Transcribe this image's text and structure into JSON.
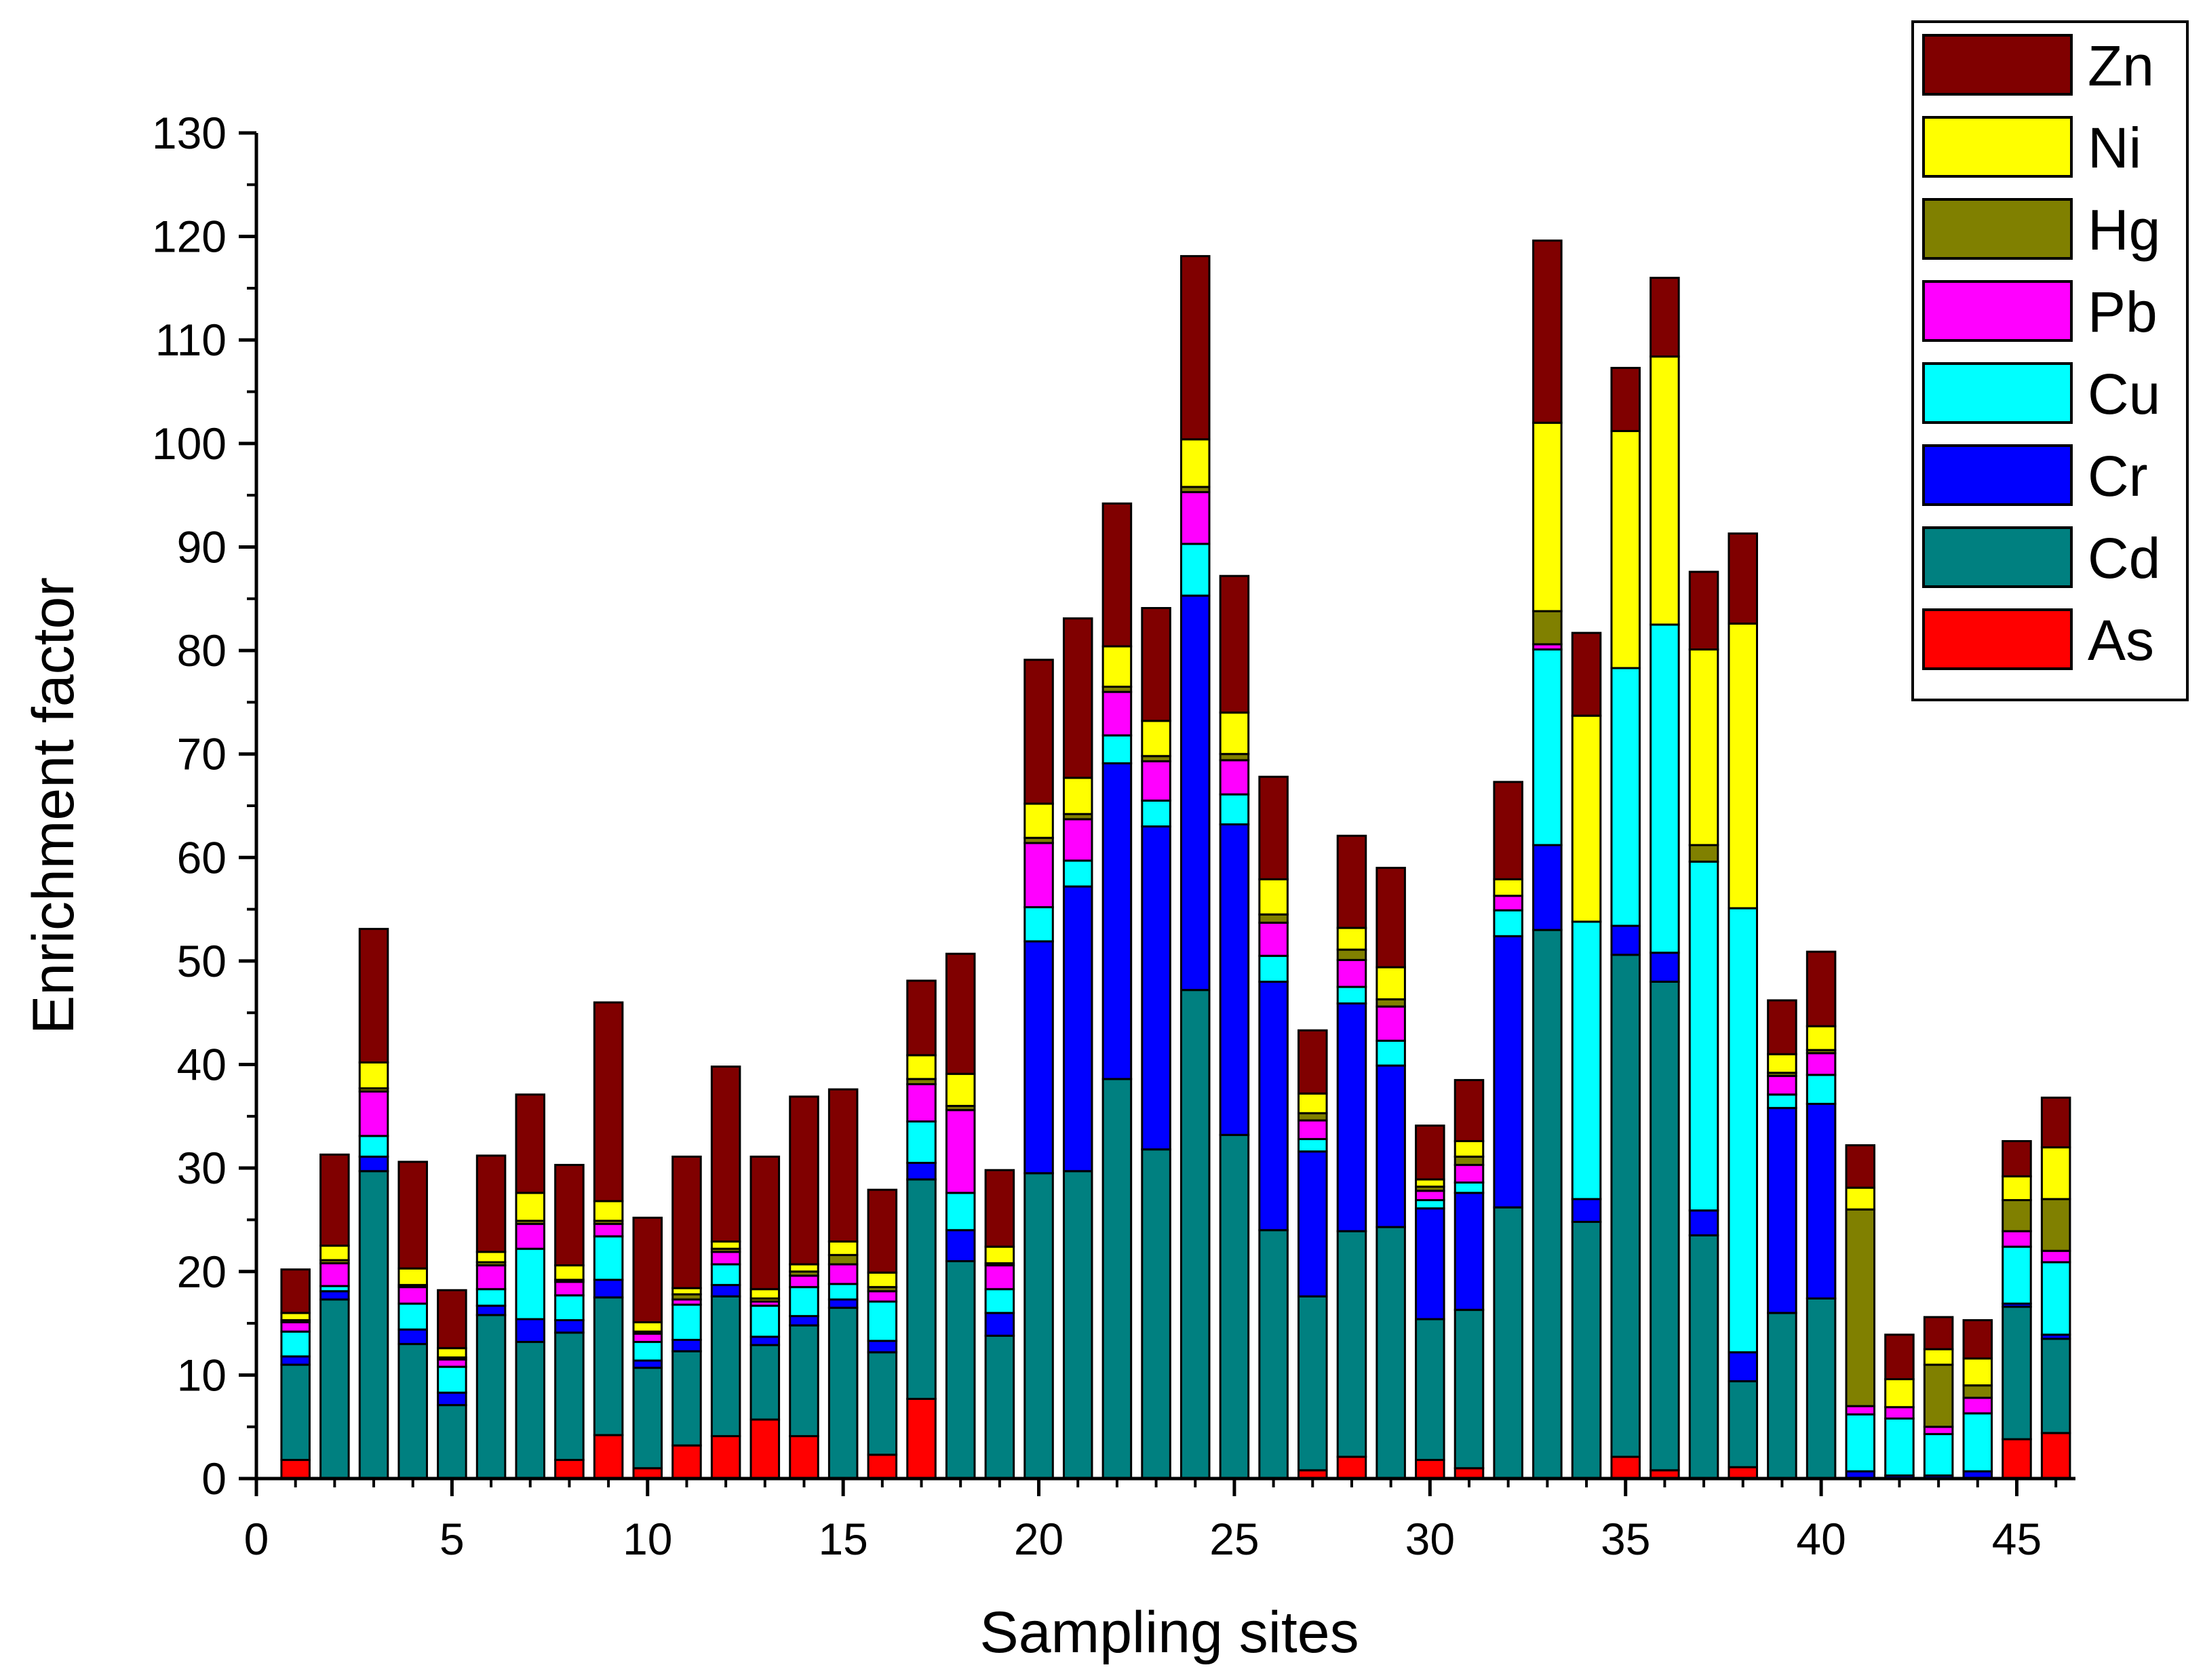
{
  "chart_data": {
    "type": "bar",
    "stacked": true,
    "title": "",
    "xlabel": "Sampling sites",
    "ylabel": "Enrichment factor",
    "xlim": [
      0,
      46.5
    ],
    "ylim": [
      0,
      130
    ],
    "xticks": [
      "0",
      "5",
      "10",
      "15",
      "20",
      "25",
      "30",
      "35",
      "40",
      "45"
    ],
    "yticks": [
      "0",
      "10",
      "20",
      "30",
      "40",
      "50",
      "60",
      "70",
      "80",
      "90",
      "100",
      "110",
      "120",
      "130"
    ],
    "legend_position": "top-right",
    "legend_order": [
      "Zn",
      "Ni",
      "Hg",
      "Pb",
      "Cu",
      "Cr",
      "Cd",
      "As"
    ],
    "categories": [
      1,
      2,
      3,
      4,
      5,
      6,
      7,
      8,
      9,
      10,
      11,
      12,
      13,
      14,
      15,
      16,
      17,
      18,
      19,
      20,
      21,
      22,
      23,
      24,
      25,
      26,
      27,
      28,
      29,
      30,
      31,
      32,
      33,
      34,
      35,
      36,
      37,
      38,
      39,
      40,
      41,
      42,
      43,
      44,
      45,
      46
    ],
    "series": [
      {
        "name": "As",
        "color": "#ff0000",
        "values": [
          1.8,
          0,
          0,
          0,
          0,
          0,
          0,
          1.8,
          4.2,
          1,
          3.2,
          4.1,
          5.7,
          4.1,
          0,
          2.3,
          7.7,
          0,
          0,
          0,
          0,
          0,
          0,
          0,
          0,
          0,
          0.8,
          2.1,
          0,
          1.8,
          1,
          0,
          0,
          0,
          2.1,
          0.8,
          0,
          1.1,
          0,
          0,
          0,
          0,
          0,
          0,
          3.8,
          4.4
        ]
      },
      {
        "name": "Cd",
        "color": "#008080",
        "values": [
          9.2,
          17.3,
          29.7,
          13,
          7.1,
          15.8,
          13.2,
          12.3,
          13.3,
          9.7,
          9.1,
          13.5,
          7.2,
          10.7,
          16.5,
          9.9,
          21.2,
          21,
          13.8,
          29.5,
          29.7,
          38.6,
          31.8,
          47.2,
          33.2,
          24,
          16.8,
          21.8,
          24.3,
          13.6,
          15.3,
          26.2,
          53,
          24.8,
          48.5,
          47.2,
          23.5,
          8.3,
          16,
          17.4,
          0,
          0,
          0,
          0,
          12.8,
          9.1
        ]
      },
      {
        "name": "Cr",
        "color": "#0000ff",
        "values": [
          0.8,
          0.8,
          1.4,
          1.4,
          1.2,
          0.9,
          2.2,
          1.2,
          1.7,
          0.7,
          1.1,
          1.1,
          0.8,
          0.9,
          0.8,
          1.1,
          1.6,
          3,
          2.2,
          22.4,
          27.5,
          30.5,
          31.2,
          38.1,
          30,
          24,
          14,
          22,
          15.6,
          10.7,
          11.3,
          26.2,
          8.2,
          2.2,
          2.8,
          2.8,
          2.4,
          2.8,
          19.8,
          18.8,
          0.7,
          0.3,
          0.3,
          0.7,
          0.3,
          0.4
        ]
      },
      {
        "name": "Cu",
        "color": "#00ffff",
        "values": [
          2.4,
          0.5,
          2,
          2.5,
          2.5,
          1.6,
          6.8,
          2.4,
          4.2,
          1.8,
          3.4,
          2,
          3,
          2.8,
          1.5,
          3.8,
          4,
          3.6,
          2.3,
          3.3,
          2.5,
          2.7,
          2.5,
          5,
          2.9,
          2.5,
          1.2,
          1.6,
          2.4,
          0.8,
          1,
          2.5,
          18.9,
          26.8,
          24.9,
          31.7,
          33.7,
          42.9,
          1.3,
          2.8,
          5.5,
          5.5,
          4,
          5.6,
          5.5,
          7
        ]
      },
      {
        "name": "Pb",
        "color": "#ff00ff",
        "values": [
          0.9,
          2.2,
          4.3,
          1.6,
          0.7,
          2.3,
          2.4,
          1.3,
          1.2,
          0.8,
          0.5,
          1.2,
          0.4,
          1.1,
          1.9,
          1,
          3.6,
          8,
          2.3,
          6.2,
          4,
          4.2,
          3.8,
          5,
          3.3,
          3.2,
          1.8,
          2.6,
          3.3,
          0.9,
          1.7,
          1.4,
          0.5,
          0,
          0,
          0,
          0,
          0,
          1.8,
          2.1,
          0.8,
          1.1,
          0.7,
          1.5,
          1.5,
          1.1
        ]
      },
      {
        "name": "Hg",
        "color": "#808000",
        "values": [
          0.2,
          0.3,
          0.3,
          0.2,
          0.2,
          0.3,
          0.3,
          0.2,
          0.3,
          0.2,
          0.5,
          0.3,
          0.3,
          0.4,
          0.9,
          0.4,
          0.5,
          0.4,
          0.2,
          0.5,
          0.5,
          0.5,
          0.5,
          0.5,
          0.6,
          0.8,
          0.7,
          1,
          0.7,
          0.4,
          0.8,
          0,
          3.2,
          0,
          0,
          0,
          1.6,
          0,
          0.3,
          0.3,
          19,
          0,
          6,
          1.2,
          3,
          5
        ]
      },
      {
        "name": "Ni",
        "color": "#ffff00",
        "values": [
          0.7,
          1.4,
          2.5,
          1.6,
          0.9,
          1,
          2.7,
          1.4,
          1.9,
          0.9,
          0.6,
          0.7,
          0.9,
          0.7,
          1.3,
          1.4,
          2.3,
          3.1,
          1.6,
          3.3,
          3.5,
          3.9,
          3.4,
          4.6,
          4,
          3.4,
          1.9,
          2.1,
          3.1,
          0.7,
          1.5,
          1.6,
          18.2,
          19.9,
          22.9,
          25.9,
          18.9,
          27.5,
          1.8,
          2.3,
          2.1,
          2.7,
          1.5,
          2.6,
          2.3,
          5
        ]
      },
      {
        "name": "Zn",
        "color": "#800000",
        "values": [
          4.2,
          8.8,
          12.9,
          10.3,
          5.6,
          9.3,
          9.5,
          9.7,
          19.2,
          10.1,
          12.7,
          16.9,
          12.8,
          16.2,
          14.7,
          8,
          7.2,
          11.6,
          7.4,
          13.9,
          15.4,
          13.8,
          10.9,
          17.7,
          13.2,
          9.9,
          6.1,
          8.9,
          9.6,
          5.2,
          5.9,
          9.4,
          17.6,
          8,
          6.1,
          7.6,
          7.5,
          8.7,
          5.2,
          7.2,
          4.1,
          4.3,
          3.1,
          3.7,
          3.4,
          4.8
        ]
      }
    ]
  }
}
